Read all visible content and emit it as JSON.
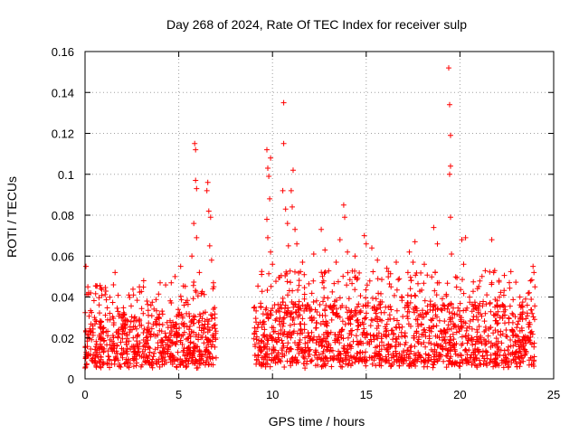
{
  "chart_data": {
    "type": "scatter",
    "title": "Day 268 of 2024, Rate Of TEC Index for receiver sulp",
    "xlabel": "GPS time / hours",
    "ylabel": "ROTI / TECUs",
    "xlim": [
      0,
      25
    ],
    "ylim": [
      0,
      0.16
    ],
    "xticks": [
      0,
      5,
      10,
      15,
      20,
      25
    ],
    "xtick_labels": [
      "0",
      "5",
      "10",
      "15",
      "20",
      "25"
    ],
    "yticks": [
      0,
      0.02,
      0.04,
      0.06,
      0.08,
      0.1,
      0.12,
      0.14,
      0.16
    ],
    "ytick_labels": [
      "0",
      "0.02",
      "0.04",
      "0.06",
      "0.08",
      "0.1",
      "0.12",
      "0.14",
      "0.16"
    ],
    "grid": true,
    "marker": "+",
    "color": "#ff0000",
    "series": [
      {
        "name": "ROTI",
        "points": [
          [
            0.05,
            0.055
          ],
          [
            0.15,
            0.045
          ],
          [
            0.3,
            0.042
          ],
          [
            0.5,
            0.03
          ],
          [
            1.6,
            0.052
          ],
          [
            2.9,
            0.045
          ],
          [
            3.3,
            0.038
          ],
          [
            4.6,
            0.047
          ],
          [
            4.8,
            0.05
          ],
          [
            5.1,
            0.055
          ],
          [
            5.7,
            0.06
          ],
          [
            5.85,
            0.115
          ],
          [
            5.9,
            0.112
          ],
          [
            5.9,
            0.097
          ],
          [
            5.95,
            0.093
          ],
          [
            5.8,
            0.076
          ],
          [
            5.95,
            0.069
          ],
          [
            6.1,
            0.052
          ],
          [
            6.5,
            0.092
          ],
          [
            6.55,
            0.096
          ],
          [
            6.6,
            0.082
          ],
          [
            6.7,
            0.079
          ],
          [
            6.65,
            0.065
          ],
          [
            6.75,
            0.058
          ],
          [
            6.85,
            0.047
          ],
          [
            9.7,
            0.112
          ],
          [
            9.75,
            0.103
          ],
          [
            9.8,
            0.099
          ],
          [
            9.9,
            0.108
          ],
          [
            9.85,
            0.088
          ],
          [
            9.7,
            0.078
          ],
          [
            9.75,
            0.069
          ],
          [
            9.9,
            0.062
          ],
          [
            10.0,
            0.056
          ],
          [
            10.6,
            0.135
          ],
          [
            10.6,
            0.115
          ],
          [
            10.55,
            0.092
          ],
          [
            10.7,
            0.083
          ],
          [
            10.8,
            0.076
          ],
          [
            10.85,
            0.065
          ],
          [
            11.1,
            0.102
          ],
          [
            11.0,
            0.092
          ],
          [
            11.05,
            0.084
          ],
          [
            11.2,
            0.073
          ],
          [
            11.3,
            0.066
          ],
          [
            11.6,
            0.057
          ],
          [
            12.2,
            0.061
          ],
          [
            12.6,
            0.073
          ],
          [
            12.8,
            0.063
          ],
          [
            13.4,
            0.057
          ],
          [
            13.6,
            0.068
          ],
          [
            13.8,
            0.085
          ],
          [
            13.85,
            0.079
          ],
          [
            14.0,
            0.062
          ],
          [
            14.4,
            0.06
          ],
          [
            14.9,
            0.07
          ],
          [
            15.0,
            0.066
          ],
          [
            15.3,
            0.064
          ],
          [
            15.6,
            0.058
          ],
          [
            16.1,
            0.054
          ],
          [
            16.6,
            0.057
          ],
          [
            17.3,
            0.062
          ],
          [
            17.6,
            0.067
          ],
          [
            17.5,
            0.057
          ],
          [
            18.1,
            0.056
          ],
          [
            18.6,
            0.074
          ],
          [
            18.8,
            0.066
          ],
          [
            19.4,
            0.152
          ],
          [
            19.45,
            0.134
          ],
          [
            19.5,
            0.119
          ],
          [
            19.5,
            0.104
          ],
          [
            19.45,
            0.1
          ],
          [
            19.5,
            0.079
          ],
          [
            19.55,
            0.061
          ],
          [
            20.1,
            0.068
          ],
          [
            20.3,
            0.069
          ],
          [
            20.2,
            0.056
          ],
          [
            21.7,
            0.068
          ],
          [
            21.8,
            0.052
          ],
          [
            21.7,
            0.047
          ],
          [
            23.2,
            0.04
          ],
          [
            23.5,
            0.039
          ],
          [
            23.9,
            0.055
          ],
          [
            23.95,
            0.052
          ],
          [
            24.0,
            0.045
          ]
        ],
        "dense_bands": [
          {
            "x": [
              0.0,
              7.0
            ],
            "y_min": 0.005,
            "y_max": 0.03
          },
          {
            "x": [
              9.0,
              24.0
            ],
            "y_min": 0.005,
            "y_max": 0.035
          }
        ],
        "gap_hours": [
          7.0,
          9.0
        ]
      }
    ]
  }
}
